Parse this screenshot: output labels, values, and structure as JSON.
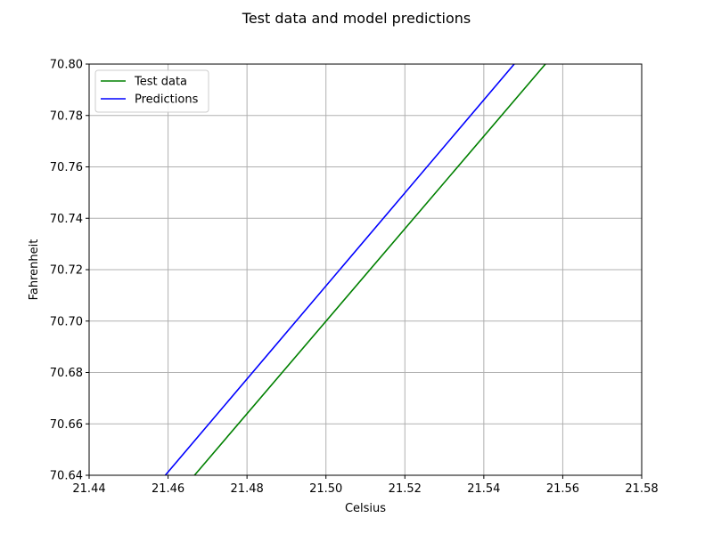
{
  "chart_data": {
    "type": "line",
    "title": "Test data and model predictions",
    "xlabel": "Celsius",
    "ylabel": "Fahrenheit",
    "xlim": [
      21.44,
      21.58
    ],
    "ylim": [
      70.64,
      70.8
    ],
    "xticks": [
      "21.44",
      "21.46",
      "21.48",
      "21.50",
      "21.52",
      "21.54",
      "21.56",
      "21.58"
    ],
    "yticks": [
      "70.64",
      "70.66",
      "70.68",
      "70.70",
      "70.72",
      "70.74",
      "70.76",
      "70.78",
      "70.80"
    ],
    "grid": true,
    "legend_position": "top-left",
    "series": [
      {
        "name": "Test data",
        "color": "#008000",
        "x": [
          21.4667,
          21.5556
        ],
        "y": [
          70.64,
          70.8
        ]
      },
      {
        "name": "Predictions",
        "color": "#0000ff",
        "x": [
          21.4593,
          21.5477
        ],
        "y": [
          70.64,
          70.8
        ]
      }
    ]
  }
}
